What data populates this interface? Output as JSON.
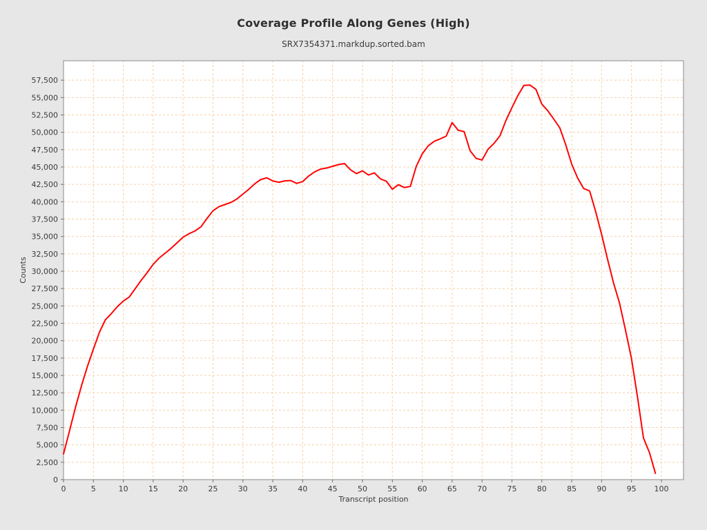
{
  "header": {
    "title": "Coverage Profile Along Genes (High)",
    "subtitle": "SRX7354371.markdup.sorted.bam"
  },
  "chart_data": {
    "type": "line",
    "title": "Coverage Profile Along Genes (High)",
    "subtitle": "SRX7354371.markdup.sorted.bam",
    "xlabel": "Transcript position",
    "ylabel": "Counts",
    "xlim": [
      0,
      103.7
    ],
    "ylim": [
      0,
      60300
    ],
    "x_ticks": [
      0,
      5,
      10,
      15,
      20,
      25,
      30,
      35,
      40,
      45,
      50,
      55,
      60,
      65,
      70,
      75,
      80,
      85,
      90,
      95,
      100
    ],
    "y_ticks": [
      0,
      2500,
      5000,
      7500,
      10000,
      12500,
      15000,
      17500,
      20000,
      22500,
      25000,
      27500,
      30000,
      32500,
      35000,
      37500,
      40000,
      42500,
      45000,
      47500,
      50000,
      52500,
      55000,
      57500
    ],
    "grid": true,
    "grid_style": "dashed",
    "legend_position": "none",
    "colors": {
      "line": "#ff0000",
      "grid": "#f6cfa5",
      "plot_background": "#ffffff",
      "page_background": "#e7e7e7",
      "plot_border": "#9b9b9b",
      "tick": "#6e6e6e",
      "text": "#3a3a3a"
    },
    "series": [
      {
        "name": "SRX7354371.markdup.sorted.bam",
        "x": [
          0,
          1,
          2,
          3,
          4,
          5,
          6,
          7,
          8,
          9,
          10,
          11,
          12,
          13,
          14,
          15,
          16,
          17,
          18,
          19,
          20,
          21,
          22,
          23,
          24,
          25,
          26,
          27,
          28,
          29,
          30,
          31,
          32,
          33,
          34,
          35,
          36,
          37,
          38,
          39,
          40,
          41,
          42,
          43,
          44,
          45,
          46,
          47,
          48,
          49,
          50,
          51,
          52,
          53,
          54,
          55,
          56,
          57,
          58,
          59,
          60,
          61,
          62,
          63,
          64,
          65,
          66,
          67,
          68,
          69,
          70,
          71,
          72,
          73,
          74,
          75,
          76,
          77,
          78,
          79,
          80,
          81,
          82,
          83,
          84,
          85,
          86,
          87,
          88,
          89,
          90,
          91,
          92,
          93,
          94,
          95,
          96,
          97,
          98,
          99
        ],
        "values": [
          3700,
          7000,
          10400,
          13500,
          16300,
          18800,
          21200,
          23000,
          23900,
          24900,
          25700,
          26300,
          27500,
          28700,
          29800,
          31000,
          31900,
          32600,
          33300,
          34100,
          34900,
          35400,
          35800,
          36400,
          37600,
          38700,
          39300,
          39600,
          39900,
          40400,
          41100,
          41800,
          42600,
          43200,
          43450,
          43000,
          42800,
          43000,
          43050,
          42650,
          42900,
          43700,
          44300,
          44700,
          44850,
          45100,
          45350,
          45500,
          44600,
          44050,
          44450,
          43850,
          44150,
          43300,
          42950,
          41800,
          42450,
          42050,
          42200,
          45100,
          46900,
          48050,
          48700,
          49050,
          49450,
          51400,
          50300,
          50100,
          47350,
          46250,
          46000,
          47550,
          48400,
          49500,
          51700,
          53550,
          55300,
          56750,
          56800,
          56200,
          54050,
          53100,
          51900,
          50650,
          48200,
          45400,
          43400,
          41900,
          41550,
          38600,
          35300,
          31700,
          28300,
          25400,
          21500,
          17400,
          11900,
          6000,
          3900,
          900
        ]
      }
    ]
  }
}
